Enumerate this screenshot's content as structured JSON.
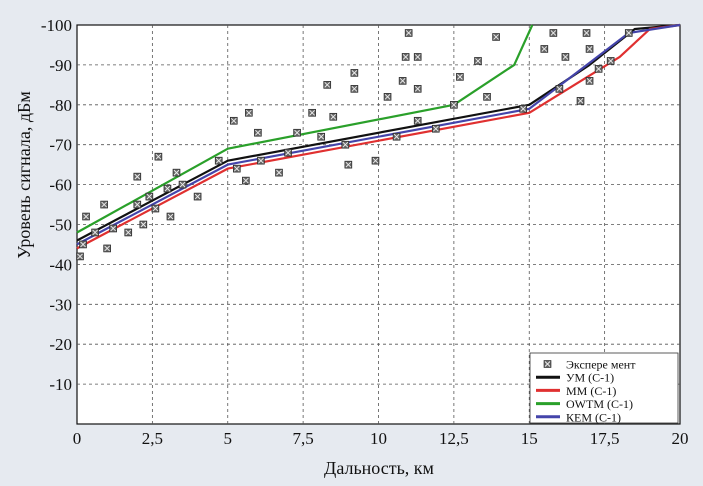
{
  "chart_data": {
    "type": "line",
    "xlabel": "Дальность, км",
    "ylabel": "Уровень сигнала, дБм",
    "xlim": [
      0,
      20
    ],
    "ylim": [
      0,
      -100
    ],
    "x_ticks": [
      0,
      2.5,
      5,
      7.5,
      10,
      12.5,
      15,
      17.5,
      20
    ],
    "x_tick_labels": [
      "0",
      "2,5",
      "5",
      "7,5",
      "10",
      "12,5",
      "15",
      "17,5",
      "20"
    ],
    "y_ticks": [
      -10,
      -20,
      -30,
      -40,
      -50,
      -60,
      -70,
      -80,
      -90,
      -100
    ],
    "y_tick_labels": [
      "-10",
      "-20",
      "-30",
      "-40",
      "-50",
      "-60",
      "-70",
      "-80",
      "-90",
      "-100"
    ],
    "grid": true,
    "legend_position": "bottom-right",
    "series": [
      {
        "name": "Экспере мент",
        "kind": "scatter",
        "color": "#444444",
        "points": [
          [
            0.1,
            -42
          ],
          [
            0.2,
            -45
          ],
          [
            0.3,
            -52
          ],
          [
            0.6,
            -48
          ],
          [
            0.9,
            -55
          ],
          [
            1.0,
            -44
          ],
          [
            1.2,
            -49
          ],
          [
            1.7,
            -48
          ],
          [
            2.0,
            -55
          ],
          [
            2.0,
            -62
          ],
          [
            2.2,
            -50
          ],
          [
            2.4,
            -57
          ],
          [
            2.6,
            -54
          ],
          [
            2.7,
            -67
          ],
          [
            3.0,
            -59
          ],
          [
            3.1,
            -52
          ],
          [
            3.3,
            -63
          ],
          [
            3.5,
            -60
          ],
          [
            4.0,
            -57
          ],
          [
            4.7,
            -66
          ],
          [
            5.2,
            -76
          ],
          [
            5.3,
            -64
          ],
          [
            5.6,
            -61
          ],
          [
            5.7,
            -78
          ],
          [
            6.0,
            -73
          ],
          [
            6.1,
            -66
          ],
          [
            6.7,
            -63
          ],
          [
            7.0,
            -68
          ],
          [
            7.3,
            -73
          ],
          [
            7.8,
            -78
          ],
          [
            8.1,
            -72
          ],
          [
            8.3,
            -85
          ],
          [
            8.5,
            -77
          ],
          [
            8.9,
            -70
          ],
          [
            9.0,
            -65
          ],
          [
            9.2,
            -84
          ],
          [
            9.2,
            -88
          ],
          [
            9.9,
            -66
          ],
          [
            10.3,
            -82
          ],
          [
            10.6,
            -72
          ],
          [
            10.8,
            -86
          ],
          [
            10.9,
            -92
          ],
          [
            11.0,
            -98
          ],
          [
            11.3,
            -92
          ],
          [
            11.3,
            -84
          ],
          [
            11.3,
            -76
          ],
          [
            11.9,
            -74
          ],
          [
            12.5,
            -80
          ],
          [
            12.7,
            -87
          ],
          [
            13.3,
            -91
          ],
          [
            13.6,
            -82
          ],
          [
            13.9,
            -97
          ],
          [
            14.8,
            -79
          ],
          [
            15.5,
            -94
          ],
          [
            15.8,
            -98
          ],
          [
            16.0,
            -84
          ],
          [
            16.2,
            -92
          ],
          [
            16.7,
            -81
          ],
          [
            16.9,
            -98
          ],
          [
            17.0,
            -86
          ],
          [
            17.0,
            -94
          ],
          [
            17.3,
            -89
          ],
          [
            17.7,
            -91
          ],
          [
            18.3,
            -98
          ]
        ]
      },
      {
        "name": "УМ (С-1)",
        "kind": "line",
        "color": "#111111",
        "points": [
          [
            0,
            -46
          ],
          [
            5,
            -66
          ],
          [
            15,
            -80
          ],
          [
            17,
            -90
          ],
          [
            18.5,
            -99
          ],
          [
            20,
            -100
          ]
        ]
      },
      {
        "name": "ММ (С-1)",
        "kind": "line",
        "color": "#e03030",
        "points": [
          [
            0,
            -44
          ],
          [
            5,
            -64
          ],
          [
            15,
            -78
          ],
          [
            18,
            -92
          ],
          [
            19,
            -99
          ],
          [
            20,
            -100
          ]
        ]
      },
      {
        "name": "OWTM (C-1)",
        "kind": "line",
        "color": "#2aa02a",
        "points": [
          [
            0,
            -48
          ],
          [
            5,
            -69
          ],
          [
            12.5,
            -80
          ],
          [
            14.5,
            -90
          ],
          [
            15.1,
            -100
          ]
        ]
      },
      {
        "name": "КЕМ (С-1)",
        "kind": "line",
        "color": "#4444aa",
        "points": [
          [
            0,
            -45
          ],
          [
            5,
            -65
          ],
          [
            15,
            -79
          ],
          [
            18.3,
            -98
          ],
          [
            20,
            -100
          ]
        ]
      }
    ]
  }
}
